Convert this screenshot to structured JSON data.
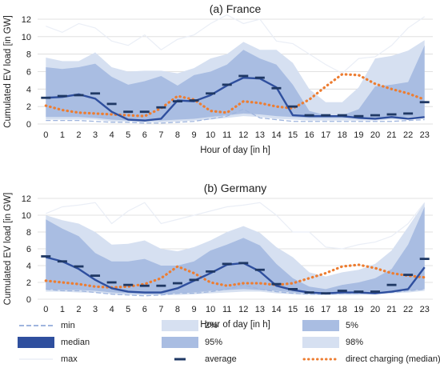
{
  "colors": {
    "max": "#eaeef6",
    "p98": "#d6e0f1",
    "p2": "#d6e0f1",
    "p95": "#a9bde2",
    "p5": "#a9bde2",
    "median": "#2f4f9e",
    "average": "#1f3864",
    "direct": "#ed7d31",
    "min": "#9fb5de",
    "grid": "#d9d9d9"
  },
  "legend": {
    "min": "min",
    "p2": "2%",
    "p5": "5%",
    "median": "median",
    "p95": "95%",
    "p98": "98%",
    "max": "max",
    "average": "average",
    "direct": "direct charging (median)"
  },
  "chart_data": [
    {
      "type": "area",
      "title": "(a) France",
      "xlabel": "Hour of day [in h]",
      "ylabel": "Cumulated EV load [in GW]",
      "ylim": [
        0,
        12
      ],
      "yticks": [
        0,
        2,
        4,
        6,
        8,
        10,
        12
      ],
      "x": [
        0,
        1,
        2,
        3,
        4,
        5,
        6,
        7,
        8,
        9,
        10,
        11,
        12,
        13,
        14,
        15,
        16,
        17,
        18,
        19,
        20,
        21,
        22,
        23
      ],
      "grid": true,
      "series": [
        {
          "name": "max",
          "values": [
            11.2,
            10.5,
            11.5,
            11,
            9.5,
            9,
            10.2,
            8.5,
            9.7,
            10.2,
            11.5,
            12.5,
            11.5,
            12,
            9.5,
            9.2,
            8,
            6.8,
            5.8,
            7.5,
            7.7,
            9,
            11,
            12.3
          ]
        },
        {
          "name": "98%",
          "values": [
            7.6,
            7.2,
            7.2,
            8.2,
            6.5,
            6,
            6.1,
            6.1,
            5.8,
            6.4,
            7.5,
            8,
            9.4,
            8.5,
            8.5,
            7,
            4,
            2.5,
            2.5,
            4.2,
            7.5,
            7.8,
            8.4,
            9.6
          ]
        },
        {
          "name": "95%",
          "values": [
            6.5,
            6.3,
            6.5,
            6.9,
            5.4,
            4.5,
            4.9,
            5.5,
            4.4,
            5.6,
            6,
            6.8,
            8.5,
            7.5,
            6.8,
            4.5,
            1.5,
            1,
            1,
            1.7,
            4.3,
            4.5,
            4.8,
            9
          ]
        },
        {
          "name": "5%",
          "values": [
            0.8,
            0.8,
            0.8,
            0.7,
            0.5,
            0.4,
            0.4,
            0.4,
            0.5,
            0.6,
            0.8,
            1,
            1.2,
            1.1,
            0.9,
            0.8,
            0.7,
            0.7,
            0.7,
            0.7,
            0.7,
            0.7,
            0.8,
            0.9
          ]
        },
        {
          "name": "2%",
          "values": [
            0.5,
            0.5,
            0.5,
            0.5,
            0.3,
            0.3,
            0.2,
            0.2,
            0.3,
            0.4,
            0.5,
            0.7,
            0.9,
            0.8,
            0.6,
            0.5,
            0.4,
            0.4,
            0.4,
            0.4,
            0.4,
            0.5,
            0.5,
            0.6
          ]
        },
        {
          "name": "min",
          "values": [
            0.4,
            0.4,
            0.4,
            0.3,
            0.2,
            0.2,
            0.1,
            0.1,
            0.2,
            0.3,
            0.6,
            0.9,
            1.7,
            0.7,
            0.5,
            0.3,
            0.3,
            0.3,
            0.3,
            0.3,
            0.3,
            0.3,
            0.4,
            0.5
          ]
        },
        {
          "name": "median",
          "values": [
            3,
            3.1,
            3.4,
            2.9,
            1.4,
            0.5,
            0.4,
            0.6,
            2.7,
            2.6,
            3.3,
            4.4,
            5.3,
            5.2,
            4.2,
            1,
            0.9,
            0.9,
            0.9,
            0.7,
            0.6,
            0.8,
            0.6,
            0.8
          ]
        },
        {
          "name": "average",
          "values": [
            3,
            3.2,
            3.3,
            3.5,
            2.3,
            1.4,
            1.4,
            1.9,
            2.6,
            2.7,
            3.5,
            4.5,
            5.5,
            5.3,
            4.1,
            2,
            1,
            1,
            1,
            0.9,
            1,
            1.1,
            1.2,
            2.5
          ]
        },
        {
          "name": "direct charging (median)",
          "values": [
            2.1,
            1.6,
            1.3,
            1.2,
            1.1,
            1,
            0.9,
            1.8,
            3.2,
            2.8,
            1.5,
            1.3,
            2.6,
            2.4,
            2,
            1.8,
            2.8,
            4.3,
            5.7,
            5.6,
            4.6,
            4,
            3.5,
            2.8
          ]
        }
      ]
    },
    {
      "type": "area",
      "title": "(b) Germany",
      "xlabel": "Hour of day [in h]",
      "ylabel": "Cumulated EV load [in GW]",
      "ylim": [
        0,
        12
      ],
      "yticks": [
        0,
        2,
        4,
        6,
        8,
        10,
        12
      ],
      "x": [
        0,
        1,
        2,
        3,
        4,
        5,
        6,
        7,
        8,
        9,
        10,
        11,
        12,
        13,
        14,
        15,
        16,
        17,
        18,
        19,
        20,
        21,
        22,
        23
      ],
      "grid": true,
      "series": [
        {
          "name": "max",
          "values": [
            10.2,
            11,
            11.2,
            11.5,
            9,
            10.5,
            11.5,
            9,
            9.5,
            10,
            10.5,
            11,
            11.2,
            11.5,
            10,
            8,
            8,
            6.2,
            6,
            6.5,
            6.8,
            7.5,
            9,
            11.5
          ]
        },
        {
          "name": "98%",
          "values": [
            10,
            9.4,
            9,
            8,
            6.5,
            6.6,
            7,
            6,
            5.7,
            6.2,
            7,
            8,
            8.7,
            7.9,
            6.2,
            5,
            3.2,
            2.7,
            3.2,
            3.5,
            4.2,
            5.8,
            8.6,
            11.5
          ]
        },
        {
          "name": "95%",
          "values": [
            9.5,
            8.4,
            7.5,
            5.5,
            4.5,
            4.5,
            4.8,
            4,
            4,
            4.5,
            5.8,
            6.5,
            7.3,
            6.4,
            4.2,
            2.5,
            1.5,
            1.2,
            1.7,
            2,
            2.5,
            3.6,
            6.5,
            11
          ]
        },
        {
          "name": "5%",
          "values": [
            1.2,
            1.1,
            1.1,
            1,
            0.8,
            0.7,
            0.6,
            0.6,
            0.7,
            0.8,
            1,
            1.1,
            1.2,
            1.1,
            1,
            0.8,
            0.7,
            0.7,
            0.7,
            0.7,
            0.8,
            0.9,
            1,
            1.2
          ]
        },
        {
          "name": "2%",
          "values": [
            0.9,
            0.9,
            0.8,
            0.8,
            0.6,
            0.5,
            0.5,
            0.5,
            0.5,
            0.6,
            0.7,
            0.8,
            0.9,
            0.9,
            0.7,
            0.6,
            0.5,
            0.5,
            0.5,
            0.5,
            0.6,
            0.7,
            0.8,
            1
          ]
        },
        {
          "name": "min",
          "values": [
            1.2,
            1,
            1,
            0.8,
            0.6,
            0.5,
            0.4,
            0.5,
            0.7,
            0.7,
            0.9,
            1.2,
            1.7,
            1.2,
            0.9,
            0.7,
            0.6,
            0.6,
            0.7,
            0.7,
            0.7,
            0.8,
            1,
            1.2
          ]
        },
        {
          "name": "median",
          "values": [
            5,
            4.5,
            3.6,
            2.3,
            1.3,
            0.9,
            0.8,
            0.8,
            1.3,
            2.2,
            3.1,
            4.1,
            4.3,
            3.3,
            1.6,
            1.1,
            0.8,
            0.7,
            0.8,
            0.8,
            0.7,
            0.9,
            1.2,
            3.8
          ]
        },
        {
          "name": "average",
          "values": [
            5.1,
            4.5,
            3.9,
            2.8,
            2,
            1.7,
            1.6,
            1.6,
            1.9,
            2.3,
            3.3,
            4.2,
            4.3,
            3.5,
            1.8,
            1.2,
            0.8,
            0.7,
            1,
            0.9,
            0.9,
            1.7,
            2.9,
            4.8
          ]
        },
        {
          "name": "direct charging (median)",
          "values": [
            2.2,
            2,
            1.8,
            1.5,
            1.4,
            1.5,
            1.8,
            2.5,
            3.9,
            3.1,
            2,
            1.6,
            1.9,
            1.9,
            1.7,
            1.9,
            2.5,
            3.1,
            3.9,
            4.1,
            3.7,
            3.1,
            2.8,
            2.6
          ]
        }
      ]
    }
  ]
}
